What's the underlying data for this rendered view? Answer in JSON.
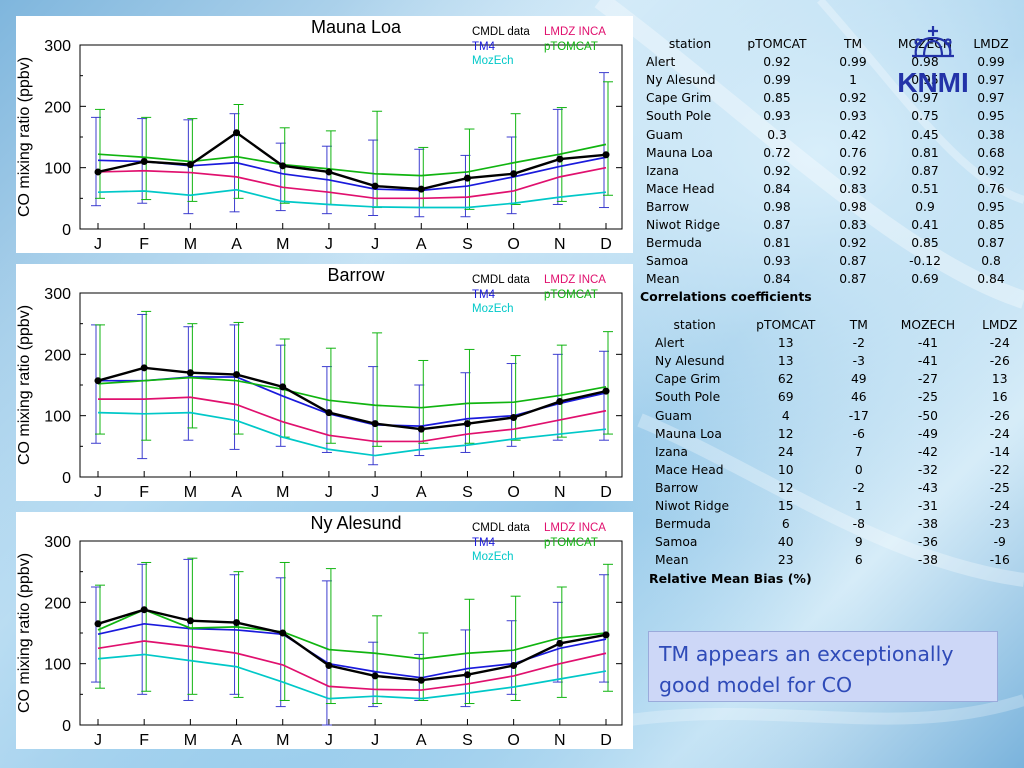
{
  "chart_data": [
    {
      "type": "line",
      "title": "Mauna Loa",
      "ylabel": "CO mixing ratio (ppbv)",
      "xlabel": "",
      "ylim": [
        0,
        300
      ],
      "yticks": [
        0,
        100,
        200,
        300
      ],
      "categories": [
        "J",
        "F",
        "M",
        "A",
        "M",
        "J",
        "J",
        "A",
        "S",
        "O",
        "N",
        "D"
      ],
      "series": [
        {
          "name": "CMDL data",
          "color": "#000000",
          "values": [
            93,
            110,
            105,
            157,
            103,
            93,
            70,
            65,
            83,
            90,
            114,
            121
          ],
          "err_low": [
            38,
            42,
            25,
            28,
            30,
            25,
            22,
            20,
            20,
            25,
            40,
            35
          ],
          "err_high": [
            182,
            180,
            178,
            188,
            140,
            135,
            145,
            130,
            120,
            150,
            195,
            255
          ]
        },
        {
          "name": "TM4",
          "color": "#1a1adc",
          "values": [
            112,
            110,
            103,
            108,
            90,
            80,
            65,
            63,
            70,
            85,
            102,
            117
          ]
        },
        {
          "name": "MozEch",
          "color": "#00c8c8",
          "values": [
            60,
            62,
            55,
            64,
            45,
            40,
            36,
            35,
            35,
            42,
            52,
            60
          ]
        },
        {
          "name": "LMDZ INCA",
          "color": "#e0106e",
          "values": [
            93,
            95,
            92,
            85,
            68,
            60,
            50,
            50,
            52,
            62,
            85,
            100
          ]
        },
        {
          "name": "pTOMCAT",
          "color": "#10b410",
          "values": [
            122,
            117,
            110,
            118,
            105,
            98,
            90,
            87,
            93,
            108,
            122,
            138
          ],
          "err_low": [
            50,
            48,
            45,
            50,
            42,
            40,
            35,
            35,
            32,
            40,
            45,
            55
          ],
          "err_high": [
            195,
            182,
            180,
            203,
            165,
            160,
            192,
            133,
            163,
            188,
            198,
            240
          ]
        }
      ]
    },
    {
      "type": "line",
      "title": "Barrow",
      "ylabel": "CO mixing ratio (ppbv)",
      "xlabel": "",
      "ylim": [
        0,
        300
      ],
      "yticks": [
        0,
        100,
        200,
        300
      ],
      "categories": [
        "J",
        "F",
        "M",
        "A",
        "M",
        "J",
        "J",
        "A",
        "S",
        "O",
        "N",
        "D"
      ],
      "series": [
        {
          "name": "CMDL data",
          "color": "#000000",
          "values": [
            157,
            178,
            170,
            167,
            147,
            105,
            87,
            78,
            87,
            97,
            123,
            140
          ],
          "err_low": [
            55,
            30,
            60,
            45,
            50,
            40,
            20,
            35,
            40,
            50,
            60,
            60
          ],
          "err_high": [
            248,
            265,
            245,
            248,
            215,
            180,
            180,
            150,
            170,
            185,
            200,
            205
          ]
        },
        {
          "name": "TM4",
          "color": "#1a1adc",
          "values": [
            157,
            157,
            163,
            163,
            132,
            103,
            85,
            83,
            95,
            100,
            120,
            137
          ]
        },
        {
          "name": "MozEch",
          "color": "#00c8c8",
          "values": [
            105,
            103,
            105,
            92,
            65,
            45,
            35,
            45,
            52,
            62,
            70,
            78
          ]
        },
        {
          "name": "LMDZ INCA",
          "color": "#e0106e",
          "values": [
            127,
            127,
            130,
            118,
            90,
            68,
            58,
            58,
            70,
            78,
            93,
            108
          ]
        },
        {
          "name": "pTOMCAT",
          "color": "#10b410",
          "values": [
            152,
            157,
            162,
            157,
            143,
            125,
            117,
            113,
            120,
            122,
            133,
            147
          ],
          "err_low": [
            70,
            60,
            80,
            70,
            65,
            55,
            50,
            55,
            55,
            60,
            65,
            70
          ],
          "err_high": [
            248,
            270,
            250,
            252,
            225,
            210,
            235,
            190,
            208,
            198,
            215,
            237
          ]
        }
      ]
    },
    {
      "type": "line",
      "title": "Ny Alesund",
      "ylabel": "CO mixing ratio (ppbv)",
      "xlabel": "",
      "ylim": [
        0,
        300
      ],
      "yticks": [
        0,
        100,
        200,
        300
      ],
      "categories": [
        "J",
        "F",
        "M",
        "A",
        "M",
        "J",
        "J",
        "A",
        "S",
        "O",
        "N",
        "D"
      ],
      "series": [
        {
          "name": "CMDL data",
          "color": "#000000",
          "values": [
            165,
            188,
            170,
            167,
            150,
            97,
            80,
            73,
            82,
            97,
            133,
            147
          ],
          "err_low": [
            70,
            50,
            40,
            50,
            30,
            0,
            30,
            40,
            30,
            50,
            70,
            70
          ],
          "err_high": [
            225,
            262,
            270,
            245,
            240,
            235,
            135,
            115,
            155,
            170,
            200,
            245
          ]
        },
        {
          "name": "TM4",
          "color": "#1a1adc",
          "values": [
            148,
            165,
            157,
            155,
            148,
            100,
            87,
            77,
            92,
            100,
            125,
            140
          ]
        },
        {
          "name": "MozEch",
          "color": "#00c8c8",
          "values": [
            108,
            115,
            105,
            95,
            70,
            43,
            47,
            43,
            52,
            62,
            75,
            88
          ]
        },
        {
          "name": "LMDZ INCA",
          "color": "#e0106e",
          "values": [
            125,
            137,
            128,
            117,
            98,
            63,
            58,
            57,
            67,
            80,
            100,
            117
          ]
        },
        {
          "name": "pTOMCAT",
          "color": "#10b410",
          "values": [
            155,
            188,
            158,
            160,
            152,
            123,
            117,
            108,
            117,
            122,
            142,
            150
          ],
          "err_low": [
            60,
            55,
            50,
            45,
            40,
            35,
            35,
            40,
            35,
            40,
            45,
            55
          ],
          "err_high": [
            228,
            265,
            272,
            250,
            265,
            255,
            178,
            150,
            205,
            210,
            225,
            262
          ]
        }
      ]
    }
  ],
  "correlations": {
    "caption": "Correlations coefficients",
    "headers": [
      "station",
      "pTOMCAT",
      "TM",
      "MOZECH",
      "LMDZ"
    ],
    "rows": [
      [
        "Alert",
        "0.92",
        "0.99",
        "0.98",
        "0.99"
      ],
      [
        "Ny Alesund",
        "0.99",
        "1",
        "0.95",
        "0.97"
      ],
      [
        "Cape Grim",
        "0.85",
        "0.92",
        "0.97",
        "0.97"
      ],
      [
        "South Pole",
        "0.93",
        "0.93",
        "0.75",
        "0.95"
      ],
      [
        "Guam",
        "0.3",
        "0.42",
        "0.45",
        "0.38"
      ],
      [
        "Mauna Loa",
        "0.72",
        "0.76",
        "0.81",
        "0.68"
      ],
      [
        "Izana",
        "0.92",
        "0.92",
        "0.87",
        "0.92"
      ],
      [
        "Mace Head",
        "0.84",
        "0.83",
        "0.51",
        "0.76"
      ],
      [
        "Barrow",
        "0.98",
        "0.98",
        "0.9",
        "0.95"
      ],
      [
        "Niwot Ridge",
        "0.87",
        "0.83",
        "0.41",
        "0.85"
      ],
      [
        "Bermuda",
        "0.81",
        "0.92",
        "0.85",
        "0.87"
      ],
      [
        "Samoa",
        "0.93",
        "0.87",
        "-0.12",
        "0.8"
      ],
      [
        "Mean",
        "0.84",
        "0.87",
        "0.69",
        "0.84"
      ]
    ]
  },
  "bias": {
    "caption": "Relative Mean Bias (%)",
    "headers": [
      "station",
      "pTOMCAT",
      "TM",
      "MOZECH",
      "LMDZ"
    ],
    "rows": [
      [
        "Alert",
        "13",
        "-2",
        "-41",
        "-24"
      ],
      [
        "Ny Alesund",
        "13",
        "-3",
        "-41",
        "-26"
      ],
      [
        "Cape Grim",
        "62",
        "49",
        "-27",
        "13"
      ],
      [
        "South Pole",
        "69",
        "46",
        "-25",
        "16"
      ],
      [
        "Guam",
        "4",
        "-17",
        "-50",
        "-26"
      ],
      [
        "Mauna Loa",
        "12",
        "-6",
        "-49",
        "-24"
      ],
      [
        "Izana",
        "24",
        "7",
        "-42",
        "-14"
      ],
      [
        "Mace Head",
        "10",
        "0",
        "-32",
        "-22"
      ],
      [
        "Barrow",
        "12",
        "-2",
        "-43",
        "-25"
      ],
      [
        "Niwot Ridge",
        "15",
        "1",
        "-31",
        "-24"
      ],
      [
        "Bermuda",
        "6",
        "-8",
        "-38",
        "-23"
      ],
      [
        "Samoa",
        "40",
        "9",
        "-36",
        "-9"
      ],
      [
        "Mean",
        "23",
        "6",
        "-38",
        "-16"
      ]
    ]
  },
  "logo": {
    "text": "KNMI",
    "color": "#2333a8"
  },
  "callout": {
    "text": "TM appears an exceptionally good model for CO"
  }
}
